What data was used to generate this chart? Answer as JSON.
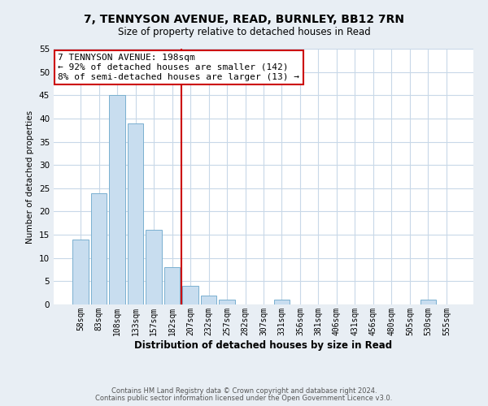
{
  "title": "7, TENNYSON AVENUE, READ, BURNLEY, BB12 7RN",
  "subtitle": "Size of property relative to detached houses in Read",
  "xlabel": "Distribution of detached houses by size in Read",
  "ylabel": "Number of detached properties",
  "categories": [
    "58sqm",
    "83sqm",
    "108sqm",
    "133sqm",
    "157sqm",
    "182sqm",
    "207sqm",
    "232sqm",
    "257sqm",
    "282sqm",
    "307sqm",
    "331sqm",
    "356sqm",
    "381sqm",
    "406sqm",
    "431sqm",
    "456sqm",
    "480sqm",
    "505sqm",
    "530sqm",
    "555sqm"
  ],
  "values": [
    14,
    24,
    45,
    39,
    16,
    8,
    4,
    2,
    1,
    0,
    0,
    1,
    0,
    0,
    0,
    0,
    0,
    0,
    0,
    1,
    0
  ],
  "bar_color": "#c8ddef",
  "bar_edge_color": "#7ab0d0",
  "vline_x_idx": 5.5,
  "vline_color": "#cc0000",
  "annotation_title": "7 TENNYSON AVENUE: 198sqm",
  "annotation_line1": "← 92% of detached houses are smaller (142)",
  "annotation_line2": "8% of semi-detached houses are larger (13) →",
  "annotation_box_color": "#ffffff",
  "annotation_box_edge": "#cc0000",
  "ylim": [
    0,
    55
  ],
  "yticks": [
    0,
    5,
    10,
    15,
    20,
    25,
    30,
    35,
    40,
    45,
    50,
    55
  ],
  "footnote1": "Contains HM Land Registry data © Crown copyright and database right 2024.",
  "footnote2": "Contains public sector information licensed under the Open Government Licence v3.0.",
  "bg_color": "#e8eef4",
  "plot_bg_color": "#ffffff",
  "grid_color": "#c8d8e8",
  "title_fontsize": 10,
  "subtitle_fontsize": 8.5,
  "xlabel_fontsize": 8.5,
  "ylabel_fontsize": 7.5,
  "tick_fontsize": 7,
  "annot_fontsize": 8,
  "footnote_fontsize": 6
}
